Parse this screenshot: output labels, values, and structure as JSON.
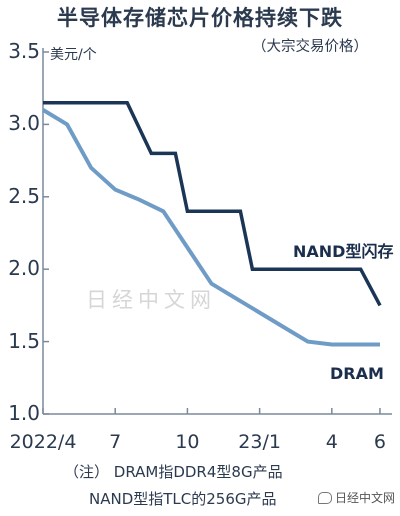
{
  "title": "半导体存储芯片价格持续下跌",
  "subtitle": "（大宗交易价格）",
  "unit": "美元/个",
  "watermark": "日经中文网",
  "note_line1": "（注）  DRAM指DDR4型8G产品",
  "note_line2": "NAND型指TLC的256G产品",
  "corner_logo": "日经中文网",
  "colors": {
    "nand": "#1b3556",
    "dram": "#6f9cc6",
    "axis": "#7a8a9c",
    "text": "#2b3a4f"
  },
  "chart_data": {
    "type": "line",
    "title": "半导体存储芯片价格持续下跌",
    "subtitle": "（大宗交易价格）",
    "ylabel": "美元/个",
    "ylim": [
      1.0,
      3.5
    ],
    "yticks": [
      "1.0",
      "1.5",
      "2.0",
      "2.5",
      "3.0",
      "3.5"
    ],
    "xlim": [
      0,
      14.5
    ],
    "xticks": [
      {
        "x": 0,
        "label": "2022/4"
      },
      {
        "x": 3,
        "label": "7"
      },
      {
        "x": 6,
        "label": "10"
      },
      {
        "x": 9,
        "label": "23/1"
      },
      {
        "x": 12,
        "label": "4"
      },
      {
        "x": 14,
        "label": "6"
      }
    ],
    "series": [
      {
        "name": "NAND型闪存",
        "key": "nand",
        "points": [
          [
            0,
            3.15
          ],
          [
            1,
            3.15
          ],
          [
            2,
            3.15
          ],
          [
            3,
            3.15
          ],
          [
            3.5,
            3.15
          ],
          [
            4.5,
            2.8
          ],
          [
            5.5,
            2.8
          ],
          [
            6,
            2.4
          ],
          [
            7,
            2.4
          ],
          [
            8.2,
            2.4
          ],
          [
            8.7,
            2.0
          ],
          [
            10,
            2.0
          ],
          [
            11,
            2.0
          ],
          [
            12,
            2.0
          ],
          [
            13.2,
            2.0
          ],
          [
            14,
            1.75
          ]
        ]
      },
      {
        "name": "DRAM",
        "key": "dram",
        "points": [
          [
            0,
            3.1
          ],
          [
            1,
            3.0
          ],
          [
            2,
            2.7
          ],
          [
            3,
            2.55
          ],
          [
            4,
            2.48
          ],
          [
            5,
            2.4
          ],
          [
            6,
            2.15
          ],
          [
            7,
            1.9
          ],
          [
            8,
            1.8
          ],
          [
            9,
            1.7
          ],
          [
            10,
            1.6
          ],
          [
            11,
            1.5
          ],
          [
            12,
            1.48
          ],
          [
            13,
            1.48
          ],
          [
            14,
            1.48
          ]
        ]
      }
    ]
  }
}
